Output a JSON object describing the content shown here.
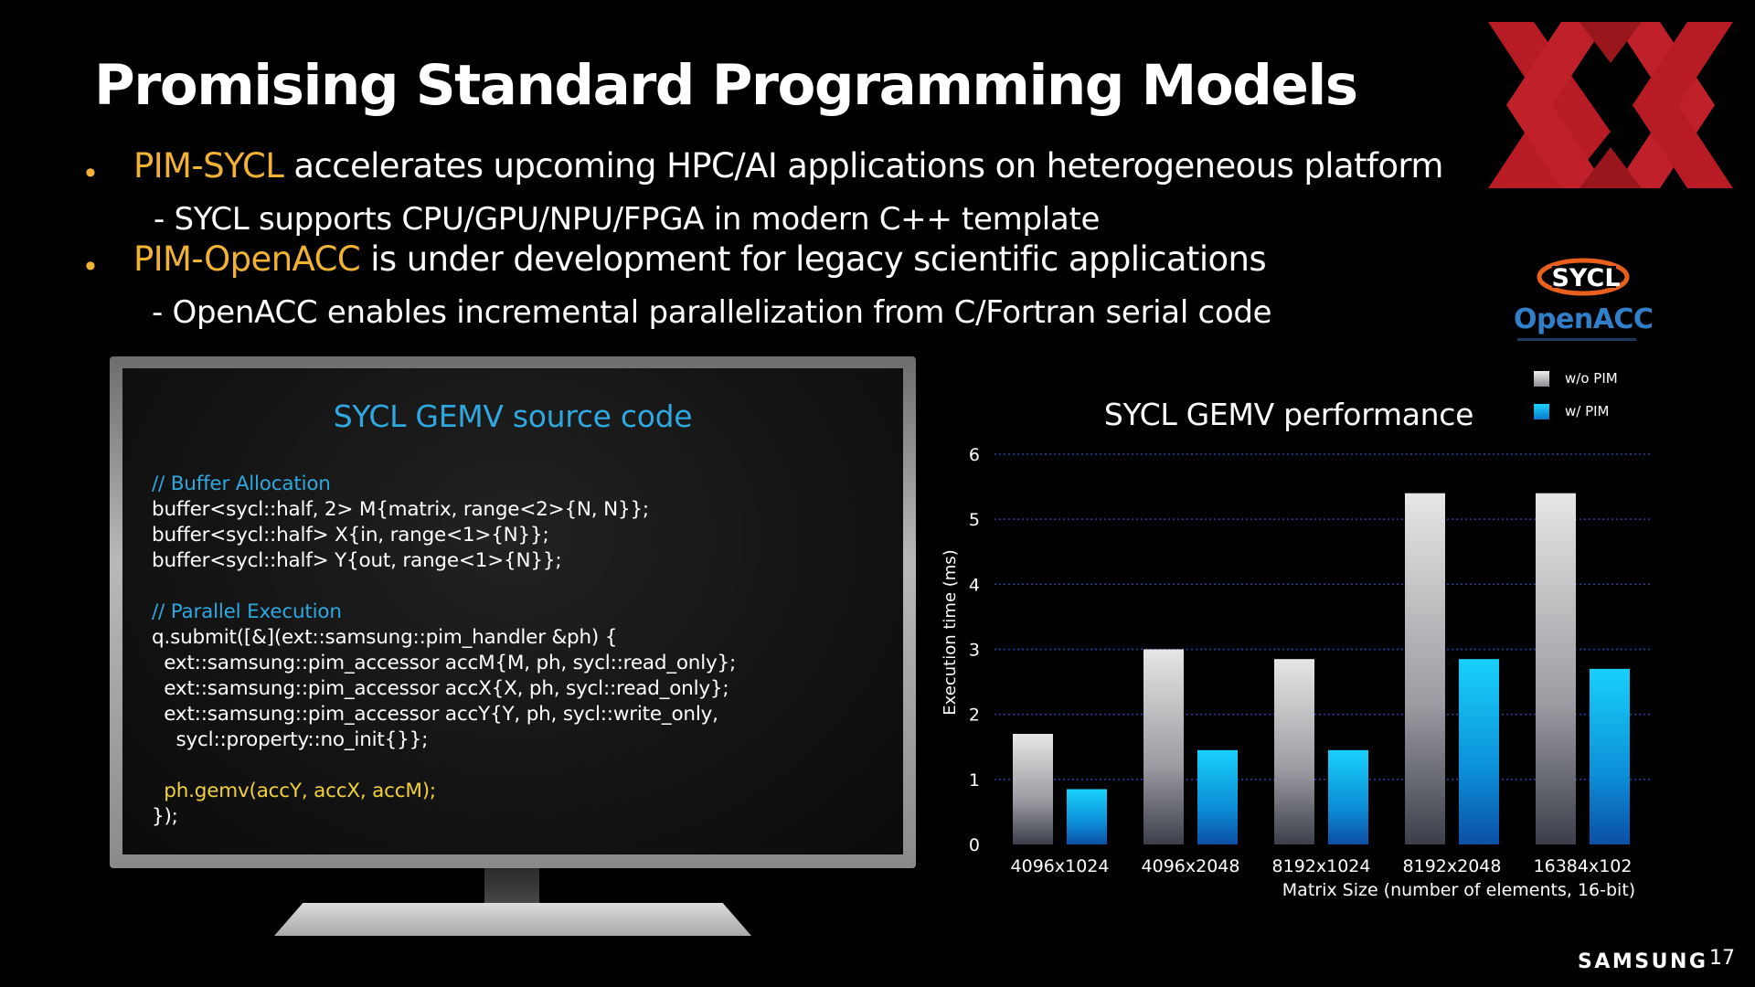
{
  "slide": {
    "title": "Promising Standard Programming Models",
    "page_number": "17",
    "brand": "SAMSUNG"
  },
  "bullets": [
    {
      "highlight": "PIM-SYCL",
      "text": " accelerates upcoming HPC/AI applications on heterogeneous platform",
      "sub": "-   SYCL supports CPU/GPU/NPU/FPGA in modern C++ template"
    },
    {
      "highlight": "PIM-OpenACC",
      "text": " is under development for legacy scientific applications",
      "sub": "- OpenACC enables incremental parallelization from C/Fortran serial code"
    }
  ],
  "logos": {
    "sycl": "SYCL",
    "openacc_part1": "Open",
    "openacc_part2": "ACC",
    "colors": {
      "event_red": "#c0202a",
      "sycl_orange": "#e8601c",
      "openacc_blue": "#2f7fc9"
    }
  },
  "code_panel": {
    "title": "SYCL GEMV source code",
    "lines": [
      {
        "text": "// Buffer Allocation",
        "style": "comment"
      },
      {
        "text": "buffer<sycl::half, 2> M{matrix, range<2>{N, N}};",
        "style": "normal"
      },
      {
        "text": "buffer<sycl::half> X{in, range<1>{N}};",
        "style": "normal"
      },
      {
        "text": "buffer<sycl::half> Y{out, range<1>{N}};",
        "style": "normal"
      },
      {
        "text": "",
        "style": "normal"
      },
      {
        "text": "// Parallel Execution",
        "style": "comment"
      },
      {
        "text": "q.submit([&](ext::samsung::pim_handler &ph) {",
        "style": "normal"
      },
      {
        "text": "  ext::samsung::pim_accessor accM{M, ph, sycl::read_only};",
        "style": "normal"
      },
      {
        "text": "  ext::samsung::pim_accessor accX{X, ph, sycl::read_only};",
        "style": "normal"
      },
      {
        "text": "  ext::samsung::pim_accessor accY{Y, ph, sycl::write_only,",
        "style": "normal"
      },
      {
        "text": "    sycl::property::no_init{}};",
        "style": "normal"
      },
      {
        "text": "",
        "style": "normal"
      },
      {
        "text": "  ph.gemv(accY, accX, accM);",
        "style": "yellow"
      },
      {
        "text": "});",
        "style": "normal"
      }
    ]
  },
  "chart_data": {
    "type": "bar",
    "title": "SYCL GEMV performance",
    "xlabel": "Matrix Size (number of elements, 16-bit)",
    "ylabel": "Execution time (ms)",
    "categories": [
      "4096x1024",
      "4096x2048",
      "8192x1024",
      "8192x2048",
      "16384x102"
    ],
    "series": [
      {
        "name": "w/o PIM",
        "values": [
          1.7,
          3.0,
          2.85,
          5.4,
          5.4
        ],
        "color": "#d8d8d8"
      },
      {
        "name": "w/ PIM",
        "values": [
          0.85,
          1.45,
          1.45,
          2.85,
          2.7
        ],
        "color": "#19c6f5"
      }
    ],
    "ylim": [
      0,
      6
    ],
    "yticks": [
      "0",
      "1",
      "2",
      "3",
      "4",
      "5",
      "6"
    ],
    "grid": true,
    "legend_position": "top-right"
  }
}
